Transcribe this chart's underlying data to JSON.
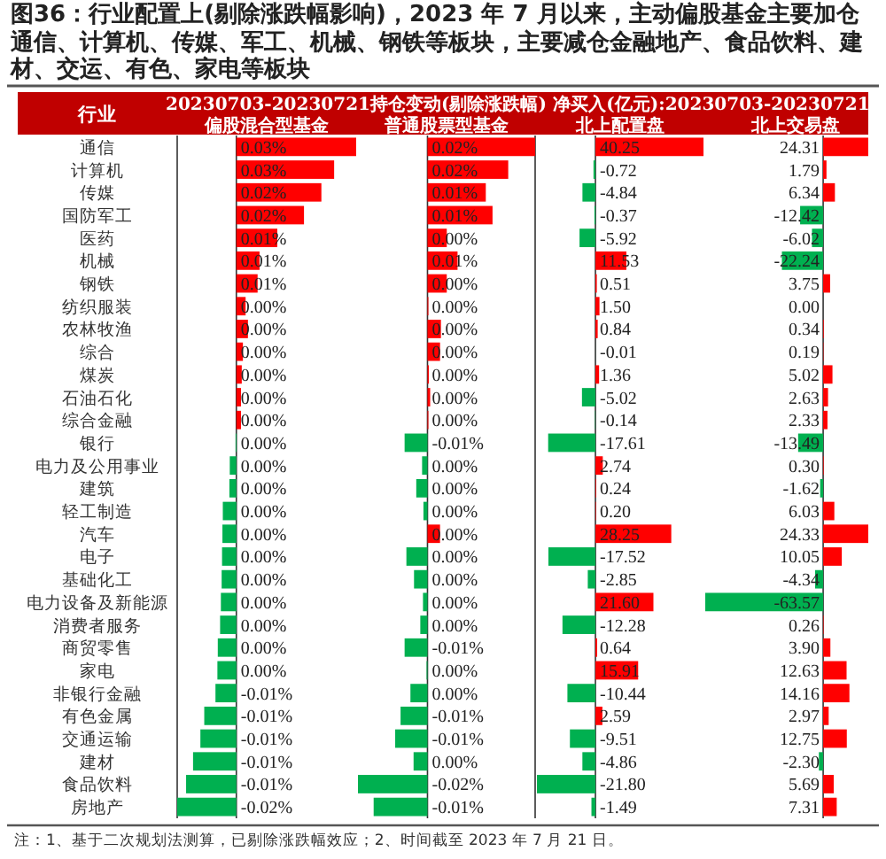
{
  "chart_data": [
    {
      "type": "bar",
      "orientation": "horizontal",
      "tick_labels": "y",
      "title": "图36：行业配置上(剔除涨跌幅影响)，2023 年 7 月以来，主动偏股基金主要加仓通信、计算机、传媒、军工、机械、钢铁等板块，主要减仓金融地产、食品饮料、建材、交运、有色、家电等板块",
      "subtitle": "20230703-20230721持仓变动(剔除涨跌幅)",
      "ylabel": "行业",
      "xlabel": "偏股混合型基金",
      "annotations": [
        "注：1、基于二次规划法测算，已剔除涨跌幅效应；2、时间截至 2023 年 7 月 21 日。"
      ],
      "categories": [
        "通信",
        "计算机",
        "传媒",
        "国防军工",
        "医药",
        "机械",
        "钢铁",
        "纺织服装",
        "农林牧渔",
        "综合",
        "煤炭",
        "石油石化",
        "综合金融",
        "银行",
        "电力及公用事业",
        "建筑",
        "轻工制造",
        "汽车",
        "电子",
        "基础化工",
        "电力设备及新能源",
        "消费者服务",
        "商贸零售",
        "家电",
        "非银行金融",
        "有色金属",
        "交通运输",
        "建材",
        "食品饮料",
        "房地产"
      ],
      "values": [
        0.031,
        0.0253,
        0.022,
        0.0175,
        0.0106,
        0.006,
        0.0055,
        0.0024,
        0.003,
        0.0017,
        0.0014,
        0.0012,
        0.0012,
        -0.0002,
        -0.0017,
        -0.0018,
        -0.0035,
        -0.0036,
        -0.0037,
        -0.0038,
        -0.004,
        -0.0042,
        -0.0048,
        -0.0049,
        -0.0054,
        -0.0083,
        -0.0093,
        -0.0112,
        -0.013,
        -0.0153
      ],
      "value_labels": [
        "0.03%",
        "0.03%",
        "0.02%",
        "0.02%",
        "0.01%",
        "0.01%",
        "0.01%",
        "0.00%",
        "0.00%",
        "0.00%",
        "0.00%",
        "0.00%",
        "0.00%",
        "0.00%",
        "0.00%",
        "0.00%",
        "0.00%",
        "0.00%",
        "0.00%",
        "0.00%",
        "0.00%",
        "0.00%",
        "0.00%",
        "0.00%",
        "-0.01%",
        "-0.01%",
        "-0.01%",
        "-0.01%",
        "-0.01%",
        "-0.02%"
      ],
      "colors": [
        "#ff0000",
        "#ff0000",
        "#ff0000",
        "#ff0000",
        "#ff0000",
        "#ff0000",
        "#ff0000",
        "#ff0000",
        "#ff0000",
        "#ff0000",
        "#ff0000",
        "#ff0000",
        "#ff0000",
        "#00b050",
        "#00b050",
        "#00b050",
        "#00b050",
        "#00b050",
        "#00b050",
        "#00b050",
        "#00b050",
        "#00b050",
        "#00b050",
        "#00b050",
        "#00b050",
        "#00b050",
        "#00b050",
        "#00b050",
        "#00b050",
        "#00b050"
      ]
    },
    {
      "type": "bar",
      "orientation": "horizontal",
      "xlabel": "普通股票型基金",
      "values": [
        0.024,
        0.018,
        0.013,
        0.0145,
        0.0043,
        0.0067,
        0.0043,
        0.0002,
        0.003,
        0.0028,
        0.0003,
        0.0006,
        0.0002,
        -0.0051,
        -0.0012,
        -0.0025,
        -0.0009,
        0.0028,
        -0.0047,
        -0.003,
        -0.001,
        -0.0016,
        -0.0051,
        -0.0002,
        -0.0038,
        -0.006,
        -0.0072,
        -0.0031,
        -0.0155,
        -0.012
      ],
      "value_labels": [
        "0.02%",
        "0.02%",
        "0.01%",
        "0.01%",
        "0.00%",
        "0.01%",
        "0.00%",
        "0.00%",
        "0.00%",
        "0.00%",
        "0.00%",
        "0.00%",
        "0.00%",
        "-0.01%",
        "0.00%",
        "0.00%",
        "0.00%",
        "0.00%",
        "0.00%",
        "0.00%",
        "0.00%",
        "0.00%",
        "-0.01%",
        "0.00%",
        "0.00%",
        "-0.01%",
        "-0.01%",
        "0.00%",
        "-0.02%",
        "-0.01%"
      ],
      "colors": [
        "#ff0000",
        "#ff0000",
        "#ff0000",
        "#ff0000",
        "#ff0000",
        "#ff0000",
        "#ff0000",
        "#ff0000",
        "#ff0000",
        "#ff0000",
        "#ff0000",
        "#ff0000",
        "#ff0000",
        "#00b050",
        "#00b050",
        "#00b050",
        "#00b050",
        "#ff0000",
        "#00b050",
        "#00b050",
        "#00b050",
        "#00b050",
        "#00b050",
        "#00b050",
        "#00b050",
        "#00b050",
        "#00b050",
        "#00b050",
        "#00b050",
        "#00b050"
      ]
    },
    {
      "type": "bar",
      "orientation": "horizontal",
      "value_labels": [
        "40.25",
        "-0.72",
        "-4.84",
        "-0.37",
        "-5.92",
        "11.53",
        "0.51",
        "1.50",
        "0.84",
        "-0.01",
        "1.36",
        "-5.02",
        "-0.14",
        "-17.61",
        "2.74",
        "0.24",
        "0.20",
        "28.25",
        "-17.52",
        "-2.85",
        "21.60",
        "-12.28",
        "0.64",
        "15.91",
        "-10.44",
        "2.59",
        "-9.51",
        "-4.86",
        "-21.80",
        "-1.49"
      ],
      "subtitle": "净买入(亿元):20230703-20230721",
      "xlabel": "北上配置盘",
      "values": [
        40.25,
        -0.72,
        -4.84,
        -0.37,
        -5.92,
        11.53,
        0.51,
        1.5,
        0.84,
        -0.01,
        1.36,
        -5.02,
        -0.14,
        -17.61,
        2.74,
        0.24,
        0.2,
        28.25,
        -17.52,
        -2.85,
        21.6,
        -12.28,
        0.64,
        15.91,
        -10.44,
        2.59,
        -9.51,
        -4.86,
        -21.8,
        -1.49
      ],
      "colors": [
        "#ff0000",
        "#00b050",
        "#00b050",
        "#00b050",
        "#00b050",
        "#ff0000",
        "#ff0000",
        "#ff0000",
        "#ff0000",
        "#00b050",
        "#ff0000",
        "#00b050",
        "#00b050",
        "#00b050",
        "#ff0000",
        "#ff0000",
        "#ff0000",
        "#ff0000",
        "#00b050",
        "#00b050",
        "#ff0000",
        "#00b050",
        "#ff0000",
        "#ff0000",
        "#00b050",
        "#ff0000",
        "#00b050",
        "#00b050",
        "#00b050",
        "#00b050"
      ]
    },
    {
      "type": "bar",
      "orientation": "horizontal",
      "xlabel": "北上交易盘",
      "value_labels": [
        "24.31",
        "1.79",
        "6.34",
        "-12.42",
        "-6.02",
        "-22.24",
        "3.75",
        "0.00",
        "0.34",
        "0.19",
        "5.02",
        "2.63",
        "2.33",
        "-13.49",
        "0.30",
        "-1.62",
        "6.03",
        "24.33",
        "10.05",
        "-4.34",
        "-63.57",
        "0.26",
        "3.90",
        "12.63",
        "14.16",
        "2.97",
        "12.75",
        "-2.30",
        "5.69",
        "7.31"
      ],
      "values": [
        24.31,
        1.79,
        6.34,
        -12.42,
        -6.02,
        -22.24,
        3.75,
        0.0,
        0.34,
        0.19,
        5.02,
        2.63,
        2.33,
        -13.49,
        0.3,
        -1.62,
        6.03,
        24.33,
        10.05,
        -4.34,
        -63.57,
        0.26,
        3.9,
        12.63,
        14.16,
        2.97,
        12.75,
        -2.3,
        5.69,
        7.31
      ],
      "colors": [
        "#ff0000",
        "#ff0000",
        "#ff0000",
        "#00b050",
        "#00b050",
        "#00b050",
        "#ff0000",
        "#ff0000",
        "#ff0000",
        "#ff0000",
        "#ff0000",
        "#ff0000",
        "#ff0000",
        "#00b050",
        "#ff0000",
        "#00b050",
        "#ff0000",
        "#ff0000",
        "#ff0000",
        "#00b050",
        "#00b050",
        "#ff0000",
        "#ff0000",
        "#ff0000",
        "#ff0000",
        "#ff0000",
        "#ff0000",
        "#00b050",
        "#ff0000",
        "#ff0000"
      ]
    }
  ]
}
